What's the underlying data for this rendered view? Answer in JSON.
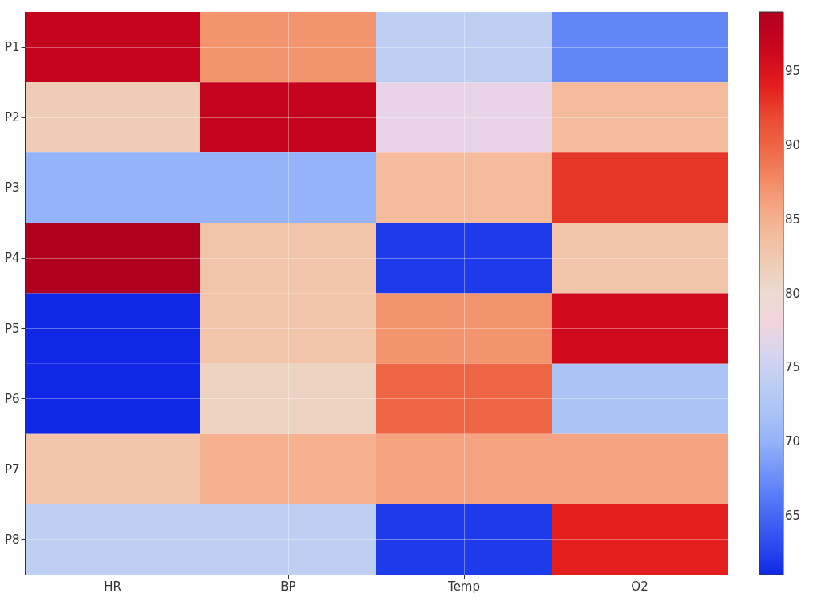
{
  "chart_data": {
    "type": "heatmap",
    "categories": [
      "HR",
      "BP",
      "Temp",
      "O2"
    ],
    "y_categories": [
      "P1",
      "P2",
      "P3",
      "P4",
      "P5",
      "P6",
      "P7",
      "P8"
    ],
    "cells": [
      [
        97,
        87,
        74,
        67
      ],
      [
        82,
        97,
        77,
        84
      ],
      [
        70,
        70,
        84,
        93
      ],
      [
        99,
        83,
        62,
        83
      ],
      [
        61,
        83,
        87,
        96
      ],
      [
        61,
        81,
        90,
        72
      ],
      [
        83,
        85,
        86,
        86
      ],
      [
        74,
        74,
        62,
        94
      ]
    ],
    "clim": [
      61,
      99
    ],
    "cticks": [
      65,
      70,
      75,
      80,
      85,
      90,
      95
    ],
    "grid": true
  }
}
